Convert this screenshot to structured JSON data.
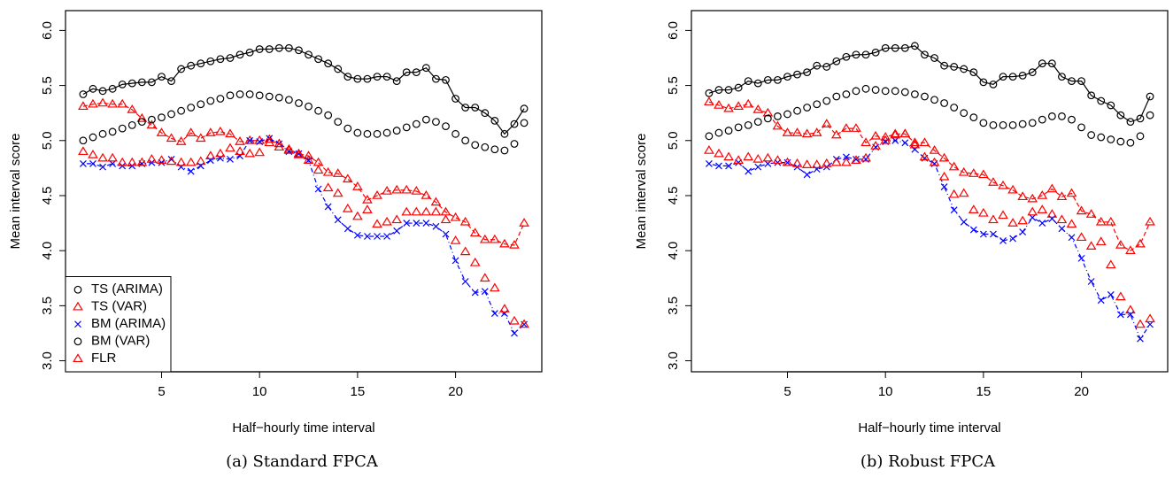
{
  "chart_data": [
    {
      "type": "line",
      "caption": "(a) Standard FPCA",
      "xlabel": "Half−hourly time interval",
      "ylabel": "Mean interval score",
      "x": [
        1,
        1.5,
        2,
        2.5,
        3,
        3.5,
        4,
        4.5,
        5,
        5.5,
        6,
        6.5,
        7,
        7.5,
        8,
        8.5,
        9,
        9.5,
        10,
        10.5,
        11,
        11.5,
        12,
        12.5,
        13,
        13.5,
        14,
        14.5,
        15,
        15.5,
        16,
        16.5,
        17,
        17.5,
        18,
        18.5,
        19,
        19.5,
        20,
        20.5,
        21,
        21.5,
        22,
        22.5,
        23,
        23.5
      ],
      "xlim": [
        0.1,
        24.4
      ],
      "xticks": [
        5,
        10,
        15,
        20
      ],
      "ylim": [
        2.9,
        6.18
      ],
      "yticks": [
        {
          "value": 3,
          "label": "3.0"
        },
        3.5,
        {
          "value": 4,
          "label": "4.0"
        },
        4.5,
        {
          "value": 5,
          "label": "5.0"
        },
        5.5,
        {
          "value": 6,
          "label": "6.0"
        }
      ],
      "legend": "bottomleft",
      "series": [
        {
          "name": "TS (ARIMA)",
          "color": "#000000",
          "marker": "circle",
          "line": "solid",
          "values": [
            5.42,
            5.47,
            5.45,
            5.47,
            5.51,
            5.52,
            5.53,
            5.53,
            5.58,
            5.54,
            5.65,
            5.68,
            5.7,
            5.72,
            5.74,
            5.75,
            5.78,
            5.8,
            5.83,
            5.83,
            5.84,
            5.84,
            5.82,
            5.78,
            5.74,
            5.7,
            5.65,
            5.58,
            5.56,
            5.56,
            5.58,
            5.58,
            5.54,
            5.62,
            5.62,
            5.66,
            5.56,
            5.55,
            5.38,
            5.3,
            5.3,
            5.25,
            5.18,
            5.06,
            5.15,
            5.29
          ]
        },
        {
          "name": "TS (VAR)",
          "color": "#ff0000",
          "marker": "triangle",
          "line": "dashed",
          "values": [
            5.31,
            5.33,
            5.34,
            5.33,
            5.33,
            5.28,
            5.2,
            5.14,
            5.07,
            5.02,
            4.99,
            5.07,
            5.02,
            5.07,
            5.08,
            5.06,
            4.99,
            5.0,
            5.0,
            5.01,
            4.97,
            4.92,
            4.88,
            4.86,
            4.8,
            4.71,
            4.7,
            4.65,
            4.58,
            4.46,
            4.5,
            4.54,
            4.55,
            4.55,
            4.54,
            4.5,
            4.44,
            4.35,
            4.3,
            4.26,
            4.16,
            4.1,
            4.1,
            4.06,
            4.05,
            4.25
          ]
        },
        {
          "name": "BM (ARIMA)",
          "color": "#0000ff",
          "marker": "x",
          "line": "dotdash",
          "values": [
            4.79,
            4.79,
            4.76,
            4.79,
            4.77,
            4.77,
            4.79,
            4.8,
            4.8,
            4.83,
            4.76,
            4.72,
            4.77,
            4.82,
            4.84,
            4.83,
            4.86,
            5.0,
            4.99,
            5.02,
            4.97,
            4.9,
            4.88,
            4.82,
            4.56,
            4.4,
            4.28,
            4.2,
            4.14,
            4.13,
            4.13,
            4.13,
            4.18,
            4.25,
            4.25,
            4.25,
            4.22,
            4.15,
            3.91,
            3.72,
            3.62,
            3.63,
            3.43,
            3.43,
            3.25,
            3.33
          ]
        },
        {
          "name": "BM (VAR)",
          "color": "#000000",
          "marker": "circle",
          "line": null,
          "values": [
            5.0,
            5.03,
            5.06,
            5.08,
            5.11,
            5.14,
            5.17,
            5.19,
            5.21,
            5.24,
            5.27,
            5.3,
            5.33,
            5.36,
            5.38,
            5.41,
            5.42,
            5.42,
            5.41,
            5.4,
            5.39,
            5.37,
            5.34,
            5.31,
            5.27,
            5.23,
            5.17,
            5.11,
            5.07,
            5.06,
            5.06,
            5.07,
            5.09,
            5.12,
            5.15,
            5.19,
            5.17,
            5.13,
            5.06,
            5.0,
            4.96,
            4.94,
            4.92,
            4.91,
            4.97,
            5.16
          ]
        },
        {
          "name": "FLR",
          "color": "#ff0000",
          "marker": "triangle",
          "line": null,
          "values": [
            4.9,
            4.87,
            4.84,
            4.84,
            4.8,
            4.8,
            4.8,
            4.83,
            4.82,
            4.81,
            4.8,
            4.8,
            4.81,
            4.86,
            4.88,
            4.93,
            4.9,
            4.88,
            4.89,
            4.98,
            4.94,
            4.91,
            4.87,
            4.82,
            4.73,
            4.57,
            4.52,
            4.38,
            4.31,
            4.37,
            4.24,
            4.26,
            4.28,
            4.35,
            4.35,
            4.35,
            4.35,
            4.28,
            4.09,
            3.99,
            3.89,
            3.75,
            3.66,
            3.47,
            3.36,
            3.33
          ]
        }
      ]
    },
    {
      "type": "line",
      "caption": "(b) Robust FPCA",
      "xlabel": "Half−hourly time interval",
      "ylabel": "Mean interval score",
      "x": [
        1,
        1.5,
        2,
        2.5,
        3,
        3.5,
        4,
        4.5,
        5,
        5.5,
        6,
        6.5,
        7,
        7.5,
        8,
        8.5,
        9,
        9.5,
        10,
        10.5,
        11,
        11.5,
        12,
        12.5,
        13,
        13.5,
        14,
        14.5,
        15,
        15.5,
        16,
        16.5,
        17,
        17.5,
        18,
        18.5,
        19,
        19.5,
        20,
        20.5,
        21,
        21.5,
        22,
        22.5,
        23,
        23.5
      ],
      "xlim": [
        0.1,
        24.4
      ],
      "xticks": [
        5,
        10,
        15,
        20
      ],
      "ylim": [
        2.9,
        6.18
      ],
      "yticks": [
        {
          "value": 3,
          "label": "3.0"
        },
        3.5,
        {
          "value": 4,
          "label": "4.0"
        },
        4.5,
        {
          "value": 5,
          "label": "5.0"
        },
        5.5,
        {
          "value": 6,
          "label": "6.0"
        }
      ],
      "series": [
        {
          "color": "#000000",
          "marker": "circle",
          "line": "solid",
          "values": [
            5.43,
            5.46,
            5.46,
            5.48,
            5.54,
            5.52,
            5.55,
            5.55,
            5.58,
            5.6,
            5.62,
            5.68,
            5.67,
            5.72,
            5.76,
            5.78,
            5.78,
            5.8,
            5.84,
            5.84,
            5.84,
            5.86,
            5.78,
            5.75,
            5.68,
            5.67,
            5.65,
            5.62,
            5.53,
            5.51,
            5.58,
            5.58,
            5.59,
            5.62,
            5.7,
            5.7,
            5.58,
            5.54,
            5.54,
            5.41,
            5.36,
            5.32,
            5.23,
            5.17,
            5.2,
            5.4
          ]
        },
        {
          "color": "#ff0000",
          "marker": "triangle",
          "line": "dashed",
          "values": [
            5.35,
            5.32,
            5.29,
            5.31,
            5.33,
            5.28,
            5.25,
            5.13,
            5.07,
            5.07,
            5.06,
            5.07,
            5.15,
            5.05,
            5.11,
            5.11,
            4.98,
            5.04,
            5.03,
            5.06,
            5.06,
            4.98,
            4.98,
            4.91,
            4.84,
            4.76,
            4.71,
            4.7,
            4.69,
            4.62,
            4.59,
            4.55,
            4.49,
            4.47,
            4.5,
            4.56,
            4.49,
            4.52,
            4.36,
            4.33,
            4.26,
            4.26,
            4.05,
            4.0,
            4.06,
            4.26
          ]
        },
        {
          "color": "#0000ff",
          "marker": "x",
          "line": "dotdash",
          "values": [
            4.79,
            4.77,
            4.77,
            4.8,
            4.72,
            4.76,
            4.79,
            4.8,
            4.8,
            4.76,
            4.69,
            4.74,
            4.76,
            4.83,
            4.85,
            4.83,
            4.83,
            4.94,
            4.99,
            5.0,
            4.98,
            4.92,
            4.84,
            4.79,
            4.58,
            4.37,
            4.26,
            4.19,
            4.15,
            4.15,
            4.09,
            4.11,
            4.17,
            4.3,
            4.25,
            4.29,
            4.2,
            4.12,
            3.93,
            3.72,
            3.55,
            3.6,
            3.42,
            3.42,
            3.2,
            3.33
          ]
        },
        {
          "color": "#000000",
          "marker": "circle",
          "line": null,
          "values": [
            5.04,
            5.07,
            5.09,
            5.12,
            5.14,
            5.17,
            5.2,
            5.22,
            5.24,
            5.27,
            5.3,
            5.33,
            5.36,
            5.4,
            5.42,
            5.45,
            5.47,
            5.46,
            5.45,
            5.45,
            5.44,
            5.42,
            5.4,
            5.37,
            5.34,
            5.3,
            5.25,
            5.21,
            5.16,
            5.14,
            5.14,
            5.14,
            5.15,
            5.16,
            5.19,
            5.22,
            5.22,
            5.19,
            5.12,
            5.05,
            5.03,
            5.01,
            4.99,
            4.98,
            5.04,
            5.23
          ]
        },
        {
          "color": "#ff0000",
          "marker": "triangle",
          "line": null,
          "values": [
            4.91,
            4.88,
            4.85,
            4.82,
            4.85,
            4.83,
            4.84,
            4.82,
            4.8,
            4.79,
            4.78,
            4.78,
            4.79,
            4.8,
            4.8,
            4.82,
            4.84,
            4.95,
            5.0,
            5.05,
            5.06,
            4.96,
            4.85,
            4.8,
            4.67,
            4.51,
            4.52,
            4.37,
            4.34,
            4.28,
            4.32,
            4.25,
            4.27,
            4.35,
            4.37,
            4.33,
            4.28,
            4.24,
            4.12,
            4.04,
            4.08,
            3.87,
            3.58,
            3.46,
            3.33,
            3.38
          ]
        }
      ]
    }
  ]
}
